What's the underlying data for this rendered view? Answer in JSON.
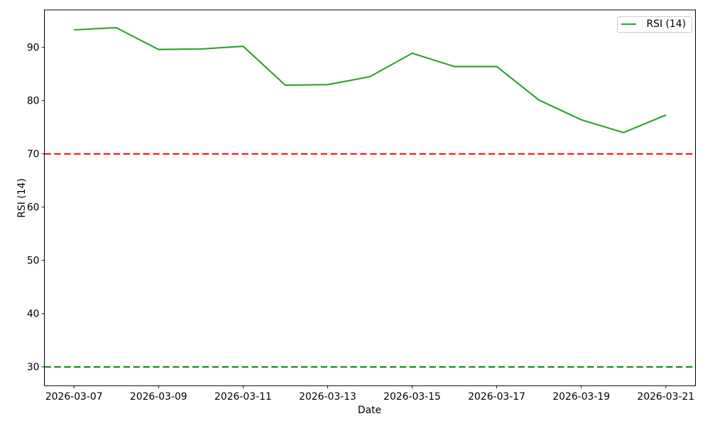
{
  "chart_data": {
    "type": "line",
    "title": "",
    "xlabel": "Date",
    "ylabel": "RSI (14)",
    "x": [
      "2026-03-07",
      "2026-03-08",
      "2026-03-09",
      "2026-03-10",
      "2026-03-11",
      "2026-03-12",
      "2026-03-13",
      "2026-03-14",
      "2026-03-15",
      "2026-03-16",
      "2026-03-17",
      "2026-03-18",
      "2026-03-19",
      "2026-03-20",
      "2026-03-21"
    ],
    "series": [
      {
        "name": "RSI (14)",
        "color": "#2ca02c",
        "values": [
          93.3,
          93.7,
          89.6,
          89.7,
          90.2,
          82.9,
          83.0,
          84.5,
          88.9,
          86.4,
          86.4,
          80.1,
          76.4,
          74.0,
          77.3
        ]
      }
    ],
    "hlines": [
      {
        "name": "overbought-threshold",
        "value": 70,
        "color": "#ff0000",
        "style": "dashed"
      },
      {
        "name": "oversold-threshold",
        "value": 30,
        "color": "#008000",
        "style": "dashed"
      }
    ],
    "yticks": [
      30,
      40,
      50,
      60,
      70,
      80,
      90
    ],
    "xticks": {
      "indices": [
        0,
        2,
        4,
        6,
        8,
        10,
        12,
        14
      ],
      "labels": [
        "2026-03-07",
        "2026-03-09",
        "2026-03-11",
        "2026-03-13",
        "2026-03-15",
        "2026-03-17",
        "2026-03-19",
        "2026-03-21"
      ]
    },
    "ylim": [
      26.45,
      97.03
    ],
    "xlim_index": [
      -0.7,
      14.7
    ],
    "grid": false,
    "legend": {
      "position": "upper right",
      "label": "RSI (14)"
    },
    "colors": {
      "spine": "#000000",
      "tick": "#000000",
      "legend_border": "#cccccc"
    }
  }
}
